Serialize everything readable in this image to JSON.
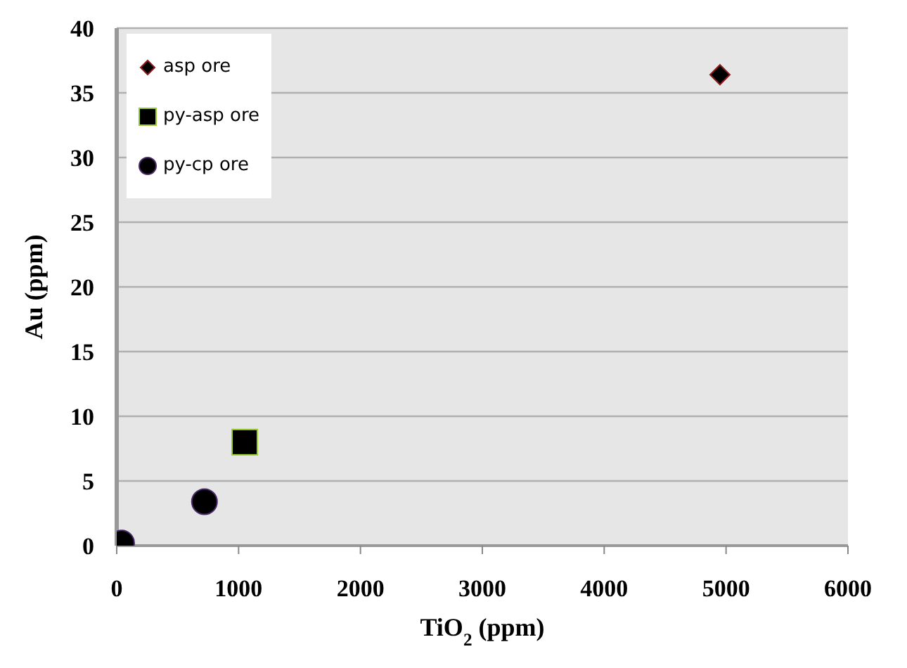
{
  "chart_data": {
    "type": "scatter",
    "xlabel": "TiO$_{2}$ (ppm)",
    "ylabel": "Au (ppm)",
    "xlim": [
      0,
      6000
    ],
    "xticks": [
      0,
      1000,
      2000,
      3000,
      4000,
      5000,
      6000
    ],
    "ylim": [
      0,
      40
    ],
    "yticks": [
      0,
      5,
      10,
      15,
      20,
      25,
      30,
      35,
      40
    ],
    "grid": "y",
    "legend": "top left",
    "series": [
      {
        "name": "asp ore",
        "color": "#000000",
        "marker": "diamond",
        "x": [
          4950
        ],
        "values": [
          36.4
        ]
      },
      {
        "name": "py-asp ore",
        "color": "#000000",
        "marker": "square",
        "x": [
          1050
        ],
        "values": [
          8
        ]
      },
      {
        "name": "py-cp ore",
        "color": "#000000",
        "marker": "circle",
        "x": [
          40,
          720
        ],
        "values": [
          0.2,
          3.4
        ]
      }
    ]
  }
}
